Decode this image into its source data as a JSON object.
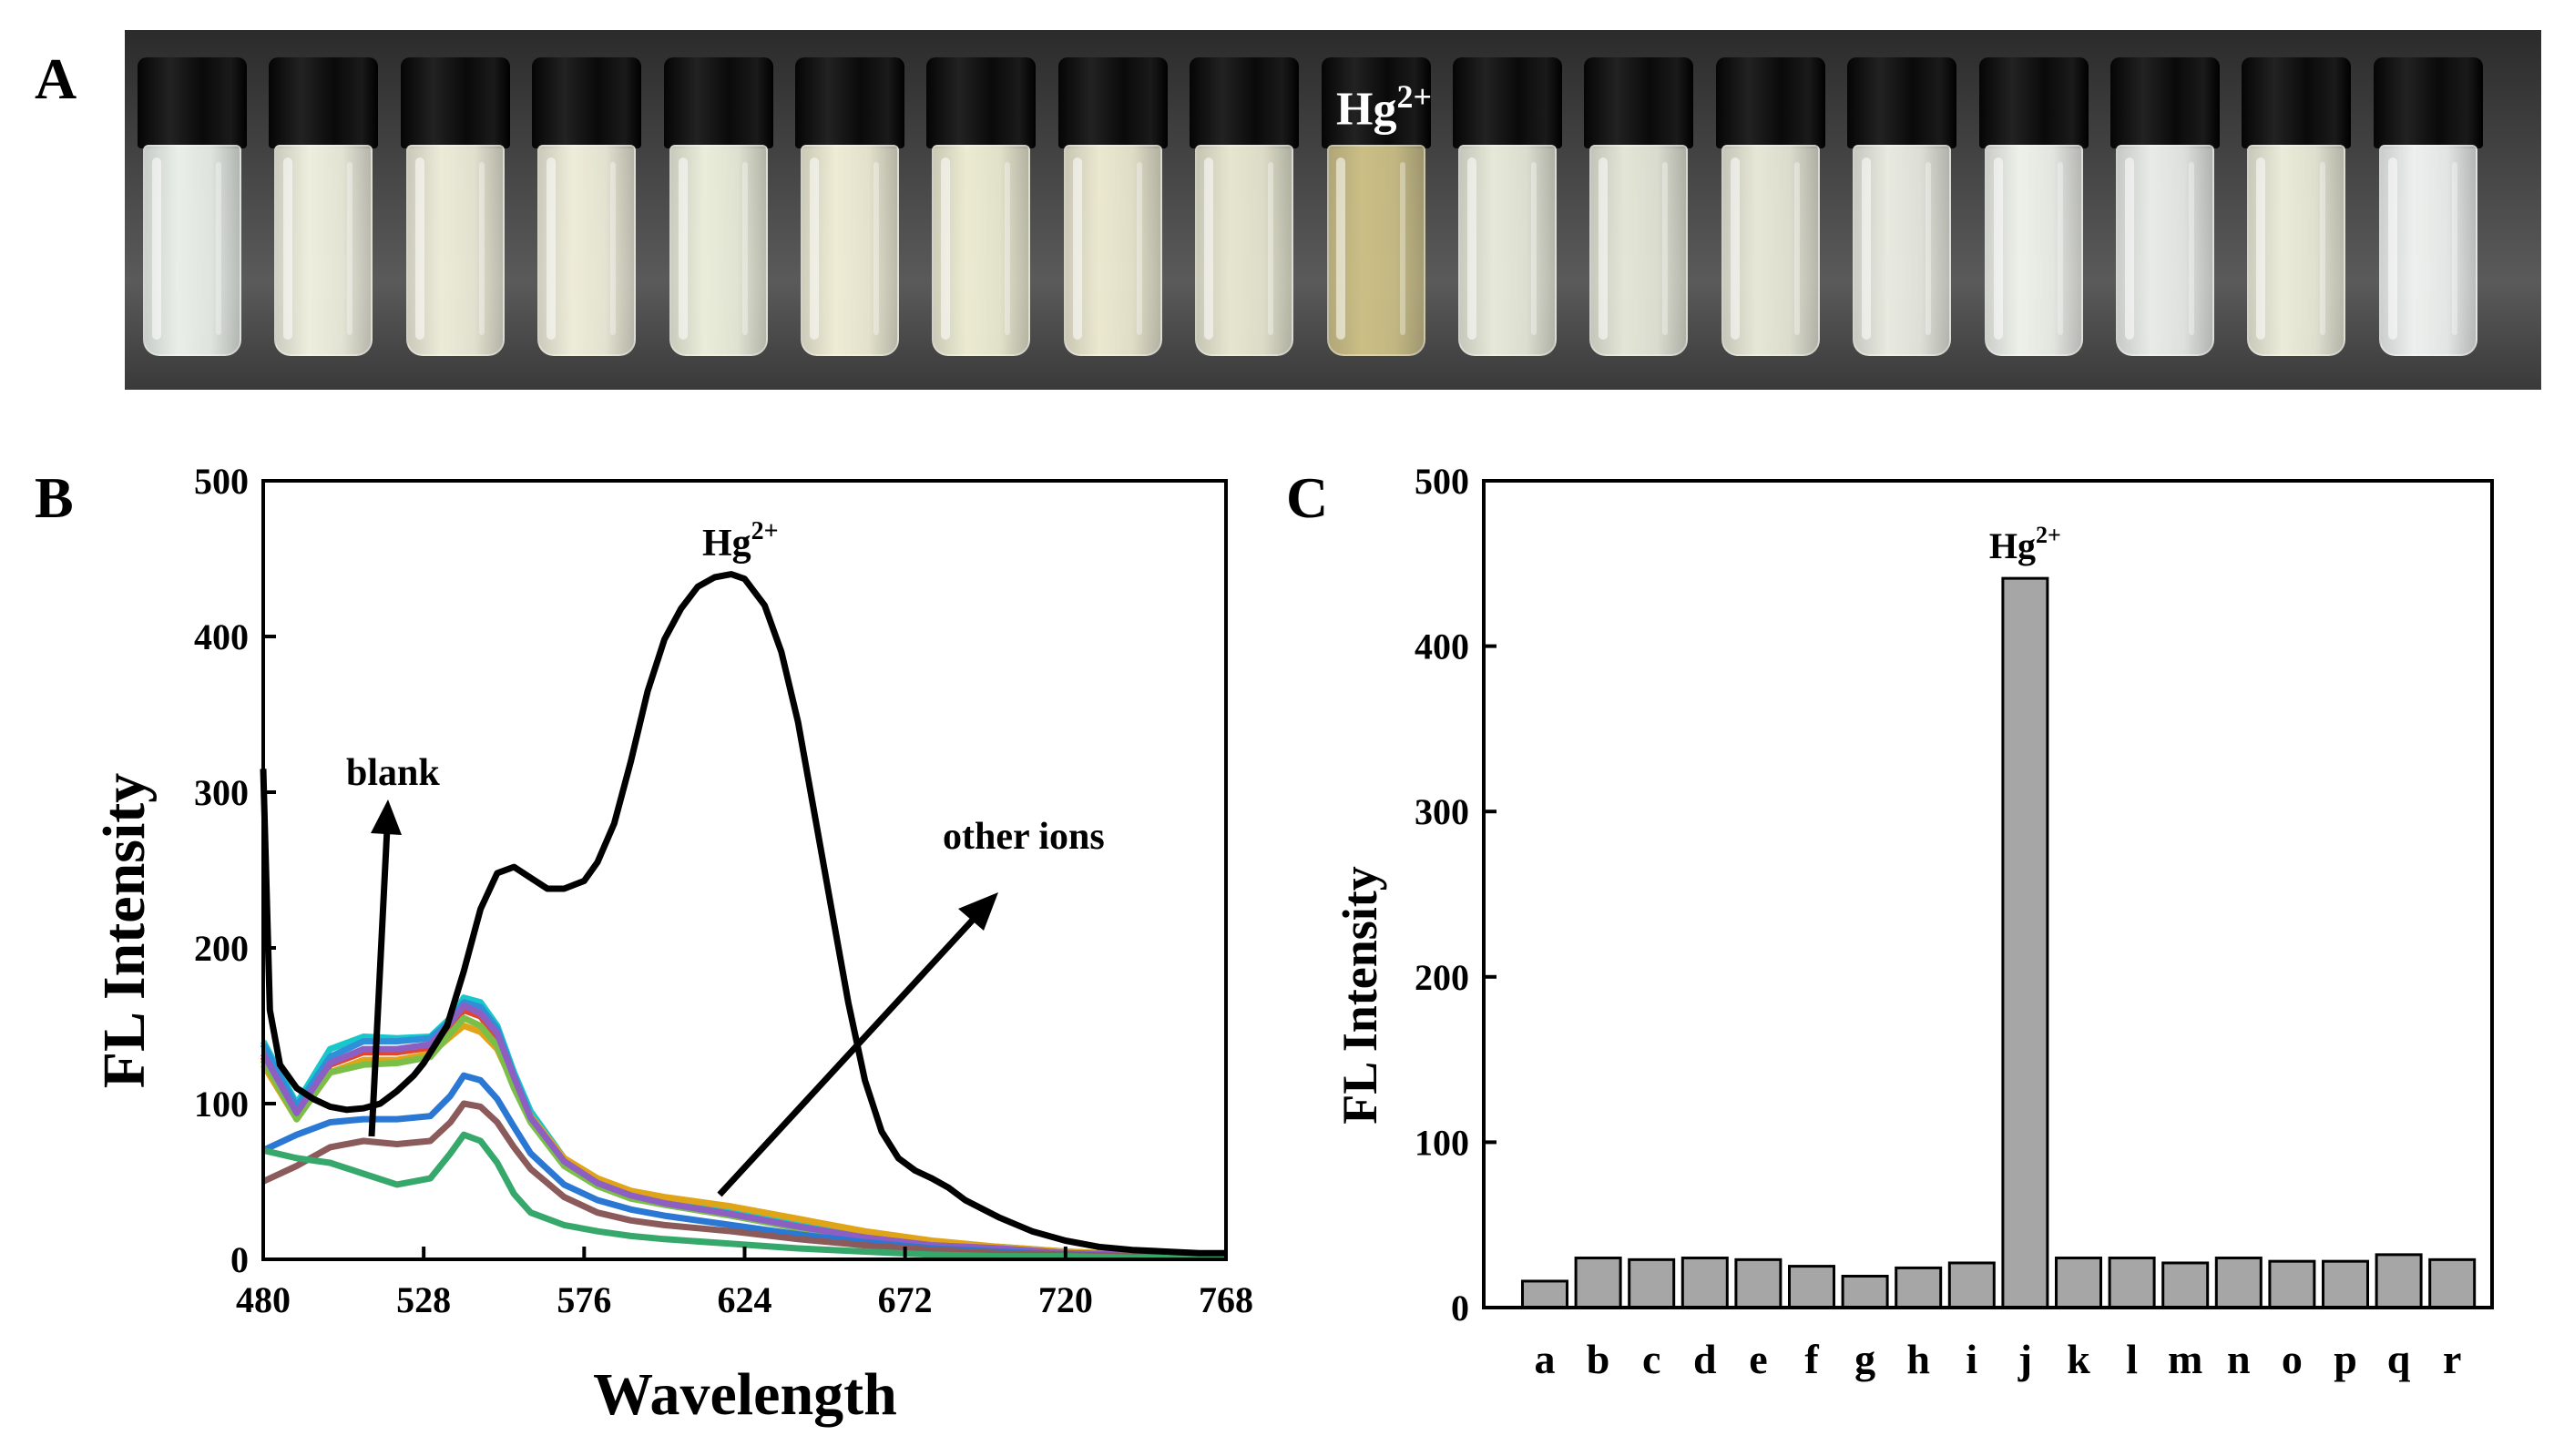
{
  "panels": {
    "a": "A",
    "b": "B",
    "c": "C"
  },
  "photo": {
    "label_base": "Hg",
    "label_sup": "2+",
    "highlight_index": 9,
    "vial_tints": [
      "#e9efe8",
      "#eeeede",
      "#ecebd8",
      "#eeecd9",
      "#eaedda",
      "#eeecd5",
      "#ecebd2",
      "#ebe8d0",
      "#e6e6d0",
      "#cbbf86",
      "#e6e8d8",
      "#e3e6d7",
      "#e6e7d6",
      "#e8eae0",
      "#eef0ea",
      "#e8ebe8",
      "#ebebd9",
      "#edf0ee"
    ]
  },
  "chart_data": [
    {
      "type": "line",
      "panel": "B",
      "xlabel": "Wavelength",
      "ylabel": "FL Intensity",
      "xlim": [
        480,
        768
      ],
      "ylim": [
        0,
        500
      ],
      "xticks": [
        480,
        528,
        576,
        624,
        672,
        720,
        768
      ],
      "yticks": [
        0,
        100,
        200,
        300,
        400,
        500
      ],
      "annotations": {
        "hg_base": "Hg",
        "hg_sup": "2+",
        "blank": "blank",
        "other_ions": "other ions"
      },
      "hg_series": {
        "name": "Hg2+",
        "color": "#000000",
        "x": [
          480,
          482,
          485,
          490,
          495,
          500,
          505,
          510,
          515,
          520,
          525,
          528,
          535,
          540,
          545,
          550,
          555,
          560,
          565,
          570,
          576,
          580,
          585,
          590,
          595,
          600,
          605,
          610,
          615,
          620,
          624,
          630,
          635,
          640,
          645,
          650,
          655,
          660,
          665,
          670,
          675,
          680,
          685,
          690,
          700,
          710,
          720,
          730,
          740,
          750,
          760,
          768
        ],
        "y": [
          315,
          160,
          125,
          110,
          103,
          98,
          96,
          97,
          100,
          108,
          118,
          126,
          150,
          185,
          225,
          248,
          252,
          245,
          238,
          238,
          243,
          255,
          280,
          320,
          365,
          398,
          418,
          432,
          438,
          440,
          437,
          420,
          390,
          345,
          285,
          225,
          165,
          115,
          82,
          65,
          57,
          52,
          46,
          38,
          27,
          18,
          12,
          8,
          6,
          5,
          4,
          4
        ]
      },
      "other_series": [
        {
          "color": "#18c7c9",
          "x": [
            480,
            490,
            500,
            510,
            520,
            530,
            536,
            540,
            545,
            550,
            555,
            560,
            570,
            580,
            590,
            600,
            620,
            640,
            660,
            680,
            700,
            720,
            740,
            768
          ],
          "y": [
            140,
            100,
            135,
            143,
            142,
            143,
            155,
            168,
            165,
            150,
            120,
            95,
            65,
            50,
            42,
            37,
            30,
            22,
            15,
            10,
            8,
            5,
            3,
            2
          ]
        },
        {
          "color": "#2f8fd8",
          "x": [
            480,
            490,
            500,
            510,
            520,
            530,
            536,
            540,
            545,
            550,
            555,
            560,
            570,
            580,
            590,
            600,
            620,
            640,
            660,
            680,
            700,
            720,
            740,
            768
          ],
          "y": [
            138,
            98,
            130,
            140,
            140,
            142,
            153,
            165,
            162,
            148,
            118,
            92,
            62,
            48,
            40,
            35,
            28,
            20,
            14,
            9,
            7,
            4,
            3,
            2
          ]
        },
        {
          "color": "#e0a419",
          "x": [
            480,
            490,
            500,
            510,
            520,
            530,
            536,
            540,
            545,
            550,
            555,
            560,
            570,
            580,
            590,
            600,
            620,
            640,
            660,
            680,
            700,
            720,
            740,
            768
          ],
          "y": [
            125,
            90,
            120,
            128,
            128,
            132,
            143,
            150,
            146,
            135,
            112,
            92,
            65,
            52,
            44,
            40,
            34,
            26,
            18,
            12,
            8,
            5,
            3,
            2
          ]
        },
        {
          "color": "#e2452f",
          "x": [
            480,
            490,
            500,
            510,
            520,
            530,
            536,
            540,
            545,
            550,
            555,
            560,
            570,
            580,
            590,
            600,
            620,
            640,
            660,
            680,
            700,
            720,
            740,
            768
          ],
          "y": [
            130,
            92,
            125,
            133,
            133,
            136,
            150,
            160,
            156,
            142,
            115,
            90,
            62,
            48,
            40,
            36,
            29,
            21,
            14,
            9,
            7,
            4,
            3,
            2
          ]
        },
        {
          "color": "#7cbf48",
          "x": [
            480,
            490,
            500,
            510,
            520,
            530,
            536,
            540,
            545,
            550,
            555,
            560,
            570,
            580,
            590,
            600,
            620,
            640,
            660,
            680,
            700,
            720,
            740,
            768
          ],
          "y": [
            128,
            90,
            120,
            125,
            126,
            130,
            145,
            155,
            150,
            137,
            110,
            88,
            60,
            47,
            39,
            35,
            28,
            20,
            13,
            9,
            6,
            4,
            3,
            2
          ]
        },
        {
          "color": "#8e5fc2",
          "x": [
            480,
            490,
            500,
            510,
            520,
            530,
            536,
            540,
            545,
            550,
            555,
            560,
            570,
            580,
            590,
            600,
            620,
            640,
            660,
            680,
            700,
            720,
            740,
            768
          ],
          "y": [
            132,
            94,
            126,
            135,
            135,
            138,
            152,
            163,
            158,
            145,
            117,
            91,
            63,
            49,
            41,
            36,
            29,
            21,
            14,
            9,
            7,
            4,
            3,
            2
          ]
        },
        {
          "color": "#2a77d4",
          "x": [
            480,
            490,
            500,
            510,
            520,
            530,
            536,
            540,
            545,
            550,
            555,
            560,
            570,
            580,
            590,
            600,
            620,
            640,
            660,
            680,
            700,
            720,
            740,
            768
          ],
          "y": [
            70,
            80,
            88,
            90,
            90,
            92,
            105,
            118,
            115,
            103,
            85,
            68,
            48,
            38,
            32,
            28,
            22,
            16,
            11,
            7,
            5,
            3,
            2,
            1
          ]
        },
        {
          "color": "#8b5a5a",
          "x": [
            480,
            490,
            500,
            510,
            520,
            530,
            536,
            540,
            545,
            550,
            555,
            560,
            570,
            580,
            590,
            600,
            620,
            640,
            660,
            680,
            700,
            720,
            740,
            768
          ],
          "y": [
            50,
            60,
            72,
            76,
            74,
            76,
            88,
            100,
            98,
            88,
            72,
            58,
            40,
            30,
            25,
            22,
            18,
            13,
            9,
            6,
            4,
            3,
            2,
            1
          ]
        },
        {
          "color": "#37a86b",
          "x": [
            480,
            490,
            500,
            510,
            520,
            530,
            536,
            540,
            545,
            550,
            555,
            560,
            570,
            580,
            590,
            600,
            620,
            640,
            660,
            680,
            700,
            720,
            740,
            768
          ],
          "y": [
            70,
            65,
            62,
            55,
            48,
            52,
            68,
            80,
            76,
            62,
            42,
            30,
            22,
            18,
            15,
            13,
            10,
            7,
            5,
            3,
            2,
            2,
            1,
            1
          ]
        }
      ]
    },
    {
      "type": "bar",
      "panel": "C",
      "xlabel": "",
      "ylabel": "FL Intensity",
      "ylim": [
        0,
        500
      ],
      "yticks": [
        0,
        100,
        200,
        300,
        400,
        500
      ],
      "categories": [
        "a",
        "b",
        "c",
        "d",
        "e",
        "f",
        "g",
        "h",
        "i",
        "j",
        "k",
        "l",
        "m",
        "n",
        "o",
        "p",
        "q",
        "r"
      ],
      "values": [
        16,
        30,
        29,
        30,
        29,
        25,
        19,
        24,
        27,
        441,
        30,
        30,
        27,
        30,
        28,
        28,
        32,
        29
      ],
      "bar_color": "#a6a6a6",
      "annotation_base": "Hg",
      "annotation_sup": "2+",
      "annotation_index": 9
    }
  ]
}
